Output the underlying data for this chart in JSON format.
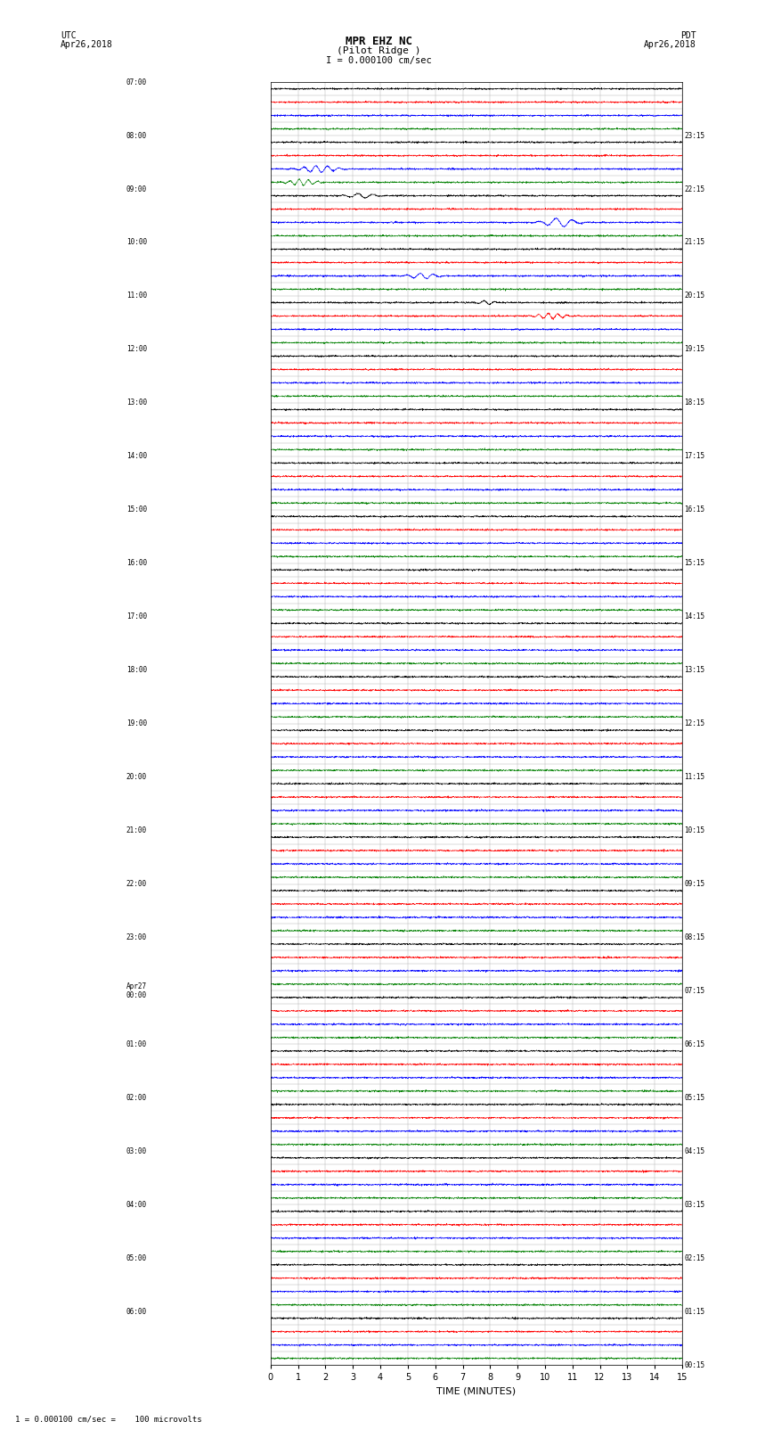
{
  "title_line1": "MPR EHZ NC",
  "title_line2": "(Pilot Ridge )",
  "scale_label": "I = 0.000100 cm/sec",
  "left_label_line1": "UTC",
  "left_label_line2": "Apr26,2018",
  "right_label_line1": "PDT",
  "right_label_line2": "Apr26,2018",
  "bottom_label": "TIME (MINUTES)",
  "footer_label": "1 = 0.000100 cm/sec =    100 microvolts",
  "xlabel_ticks": [
    0,
    1,
    2,
    3,
    4,
    5,
    6,
    7,
    8,
    9,
    10,
    11,
    12,
    13,
    14,
    15
  ],
  "utc_times": [
    "07:00",
    "",
    "",
    "",
    "08:00",
    "",
    "",
    "",
    "09:00",
    "",
    "",
    "",
    "10:00",
    "",
    "",
    "",
    "11:00",
    "",
    "",
    "",
    "12:00",
    "",
    "",
    "",
    "13:00",
    "",
    "",
    "",
    "14:00",
    "",
    "",
    "",
    "15:00",
    "",
    "",
    "",
    "16:00",
    "",
    "",
    "",
    "17:00",
    "",
    "",
    "",
    "18:00",
    "",
    "",
    "",
    "19:00",
    "",
    "",
    "",
    "20:00",
    "",
    "",
    "",
    "21:00",
    "",
    "",
    "",
    "22:00",
    "",
    "",
    "",
    "23:00",
    "",
    "",
    "",
    "Apr27\n00:00",
    "",
    "",
    "",
    "01:00",
    "",
    "",
    "",
    "02:00",
    "",
    "",
    "",
    "03:00",
    "",
    "",
    "",
    "04:00",
    "",
    "",
    "",
    "05:00",
    "",
    "",
    "",
    "06:00",
    "",
    "",
    ""
  ],
  "pdt_times": [
    "00:15",
    "",
    "",
    "",
    "01:15",
    "",
    "",
    "",
    "02:15",
    "",
    "",
    "",
    "03:15",
    "",
    "",
    "",
    "04:15",
    "",
    "",
    "",
    "05:15",
    "",
    "",
    "",
    "06:15",
    "",
    "",
    "",
    "07:15",
    "",
    "",
    "",
    "08:15",
    "",
    "",
    "",
    "09:15",
    "",
    "",
    "",
    "10:15",
    "",
    "",
    "",
    "11:15",
    "",
    "",
    "",
    "12:15",
    "",
    "",
    "",
    "13:15",
    "",
    "",
    "",
    "14:15",
    "",
    "",
    "",
    "15:15",
    "",
    "",
    "",
    "16:15",
    "",
    "",
    "",
    "17:15",
    "",
    "",
    "",
    "18:15",
    "",
    "",
    "",
    "19:15",
    "",
    "",
    "",
    "20:15",
    "",
    "",
    "",
    "21:15",
    "",
    "",
    "",
    "22:15",
    "",
    "",
    "",
    "23:15",
    "",
    "",
    ""
  ],
  "n_rows": 96,
  "n_cols": 4,
  "minutes_per_row": 15,
  "bg_color": "#ffffff",
  "grid_color": "#aaaaaa",
  "trace_colors": [
    "#000000",
    "#ff0000",
    "#0000ff",
    "#008000"
  ],
  "active_rows": 20,
  "noise_amplitude": 0.03,
  "signal_amplitude": 0.35
}
